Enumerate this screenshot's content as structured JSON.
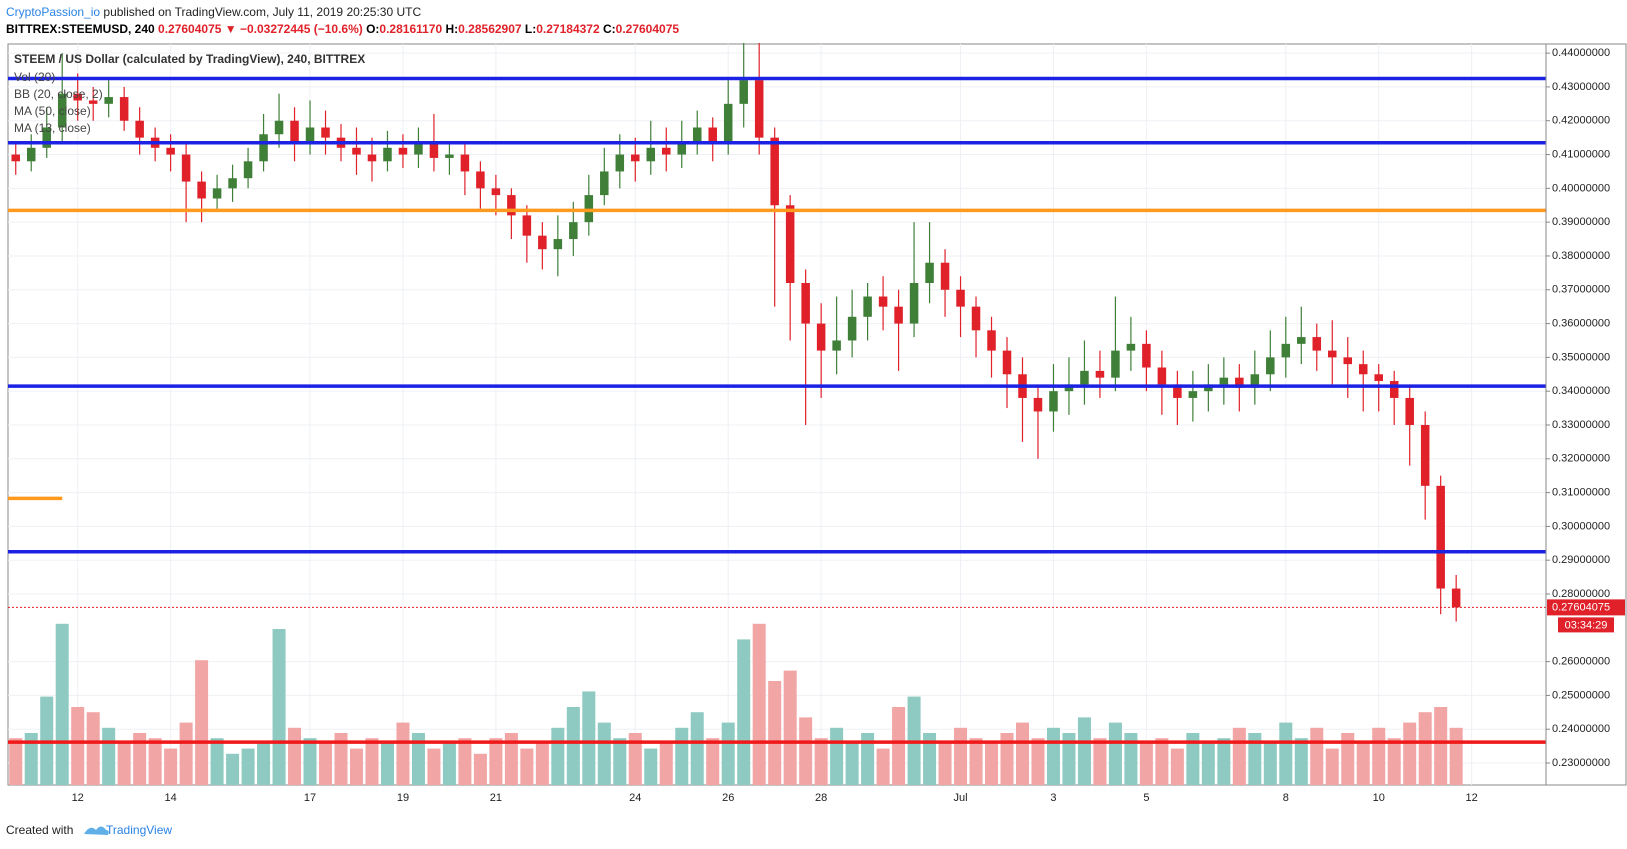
{
  "header": {
    "author": "CryptoPassion_io",
    "published": " published on TradingView.com, July 11, 2019 20:25:30 UTC",
    "quote": [
      {
        "text": "BITTREX:STEEMUSD, 240 ",
        "color": "#000000"
      },
      {
        "text": "0.27604075 ▼ −0.03272445 (−10.6%) ",
        "color": "#e0212a"
      },
      {
        "text": "O:",
        "color": "#000000"
      },
      {
        "text": "0.28161170 ",
        "color": "#e0212a"
      },
      {
        "text": "H:",
        "color": "#000000"
      },
      {
        "text": "0.28562907 ",
        "color": "#e0212a"
      },
      {
        "text": "L:",
        "color": "#000000"
      },
      {
        "text": "0.27184372 ",
        "color": "#e0212a"
      },
      {
        "text": "C:",
        "color": "#000000"
      },
      {
        "text": "0.27604075",
        "color": "#e0212a"
      }
    ]
  },
  "chart_data": {
    "type": "candlestick",
    "title": "STEEM / US Dollar (calculated by TradingView), 240, BITTREX",
    "indicators": [
      "Vol (20)",
      "BB (20, close, 2)",
      "MA (50, close)",
      "MA (13, close)"
    ],
    "categories": [
      null,
      null,
      null,
      null,
      "12",
      null,
      null,
      null,
      null,
      null,
      "14",
      null,
      null,
      null,
      null,
      null,
      null,
      null,
      null,
      "17",
      null,
      null,
      null,
      null,
      null,
      "19",
      null,
      null,
      null,
      null,
      null,
      "21",
      null,
      null,
      null,
      null,
      null,
      null,
      null,
      null,
      "24",
      null,
      null,
      null,
      null,
      null,
      "26",
      null,
      null,
      null,
      null,
      null,
      "28",
      null,
      null,
      null,
      null,
      null,
      null,
      null,
      null,
      "Jul",
      null,
      null,
      null,
      null,
      null,
      "3",
      null,
      null,
      null,
      null,
      null,
      "5",
      null,
      null,
      null,
      null,
      null,
      null,
      null,
      null,
      "8",
      null,
      null,
      null,
      null,
      null,
      "10",
      null,
      null,
      null,
      null,
      null,
      "12"
    ],
    "candles": {
      "open": [
        0.41,
        0.408,
        0.412,
        0.418,
        0.428,
        0.426,
        0.425,
        0.427,
        0.42,
        0.415,
        0.412,
        0.41,
        0.402,
        0.397,
        0.4,
        0.403,
        0.408,
        0.416,
        0.42,
        0.414,
        0.418,
        0.415,
        0.412,
        0.41,
        0.408,
        0.412,
        0.41,
        0.413,
        0.409,
        0.41,
        0.405,
        0.4,
        0.398,
        0.392,
        0.386,
        0.382,
        0.385,
        0.39,
        0.398,
        0.405,
        0.41,
        0.408,
        0.412,
        0.41,
        0.414,
        0.418,
        0.413,
        0.425,
        0.432,
        0.415,
        0.395,
        0.372,
        0.36,
        0.352,
        0.355,
        0.362,
        0.368,
        0.365,
        0.36,
        0.372,
        0.378,
        0.37,
        0.365,
        0.358,
        0.352,
        0.345,
        0.338,
        0.334,
        0.34,
        0.342,
        0.346,
        0.344,
        0.352,
        0.354,
        0.347,
        0.342,
        0.338,
        0.34,
        0.342,
        0.344,
        0.341,
        0.345,
        0.35,
        0.354,
        0.356,
        0.352,
        0.35,
        0.348,
        0.345,
        0.343,
        0.338,
        0.33,
        0.312,
        0.2816117,
        null
      ],
      "high": [
        0.414,
        0.416,
        0.424,
        0.44,
        0.434,
        0.43,
        0.432,
        0.43,
        0.424,
        0.418,
        0.416,
        0.413,
        0.405,
        0.404,
        0.407,
        0.412,
        0.422,
        0.428,
        0.424,
        0.426,
        0.423,
        0.419,
        0.418,
        0.415,
        0.417,
        0.416,
        0.418,
        0.422,
        0.414,
        0.413,
        0.408,
        0.404,
        0.4,
        0.395,
        0.39,
        0.392,
        0.396,
        0.404,
        0.412,
        0.416,
        0.415,
        0.42,
        0.418,
        0.42,
        0.423,
        0.421,
        0.432,
        0.443,
        0.443,
        0.418,
        0.398,
        0.376,
        0.366,
        0.368,
        0.37,
        0.372,
        0.374,
        0.37,
        0.39,
        0.39,
        0.382,
        0.374,
        0.368,
        0.362,
        0.356,
        0.35,
        0.342,
        0.348,
        0.35,
        0.355,
        0.352,
        0.368,
        0.362,
        0.358,
        0.352,
        0.346,
        0.346,
        0.348,
        0.35,
        0.348,
        0.352,
        0.358,
        0.362,
        0.365,
        0.36,
        0.361,
        0.356,
        0.352,
        0.348,
        0.346,
        0.342,
        0.334,
        0.315,
        0.28562907,
        null
      ],
      "low": [
        0.404,
        0.405,
        0.409,
        0.414,
        0.42,
        0.42,
        0.421,
        0.417,
        0.41,
        0.408,
        0.405,
        0.39,
        0.39,
        0.393,
        0.396,
        0.4,
        0.405,
        0.412,
        0.408,
        0.41,
        0.41,
        0.408,
        0.404,
        0.402,
        0.405,
        0.406,
        0.406,
        0.405,
        0.404,
        0.398,
        0.394,
        0.392,
        0.385,
        0.378,
        0.376,
        0.374,
        0.38,
        0.386,
        0.395,
        0.4,
        0.402,
        0.404,
        0.405,
        0.406,
        0.41,
        0.408,
        0.41,
        0.418,
        0.41,
        0.365,
        0.355,
        0.33,
        0.338,
        0.345,
        0.35,
        0.355,
        0.358,
        0.346,
        0.356,
        0.366,
        0.362,
        0.356,
        0.35,
        0.344,
        0.335,
        0.325,
        0.32,
        0.328,
        0.333,
        0.336,
        0.338,
        0.34,
        0.346,
        0.34,
        0.333,
        0.33,
        0.331,
        0.334,
        0.336,
        0.334,
        0.336,
        0.34,
        0.344,
        0.348,
        0.346,
        0.342,
        0.338,
        0.334,
        0.334,
        0.33,
        0.318,
        0.302,
        0.274,
        0.27184372,
        null
      ],
      "close": [
        0.408,
        0.412,
        0.418,
        0.428,
        0.426,
        0.425,
        0.427,
        0.42,
        0.415,
        0.412,
        0.41,
        0.402,
        0.397,
        0.4,
        0.403,
        0.408,
        0.416,
        0.42,
        0.414,
        0.418,
        0.415,
        0.412,
        0.41,
        0.408,
        0.412,
        0.41,
        0.413,
        0.409,
        0.41,
        0.405,
        0.4,
        0.398,
        0.392,
        0.386,
        0.382,
        0.385,
        0.39,
        0.398,
        0.405,
        0.41,
        0.408,
        0.412,
        0.41,
        0.414,
        0.418,
        0.413,
        0.425,
        0.432,
        0.415,
        0.395,
        0.372,
        0.36,
        0.352,
        0.355,
        0.362,
        0.368,
        0.365,
        0.36,
        0.372,
        0.378,
        0.37,
        0.365,
        0.358,
        0.352,
        0.345,
        0.338,
        0.334,
        0.34,
        0.342,
        0.346,
        0.344,
        0.352,
        0.354,
        0.347,
        0.342,
        0.338,
        0.34,
        0.342,
        0.344,
        0.341,
        0.345,
        0.35,
        0.354,
        0.356,
        0.352,
        0.35,
        0.348,
        0.345,
        0.343,
        0.338,
        0.33,
        0.312,
        0.2816117,
        0.27604075,
        null
      ],
      "volume": [
        18,
        20,
        34,
        62,
        30,
        28,
        22,
        16,
        20,
        18,
        14,
        24,
        48,
        18,
        12,
        14,
        16,
        60,
        22,
        18,
        16,
        20,
        14,
        18,
        16,
        24,
        20,
        14,
        16,
        18,
        12,
        18,
        20,
        14,
        16,
        22,
        30,
        36,
        24,
        18,
        20,
        14,
        16,
        22,
        28,
        18,
        24,
        56,
        62,
        40,
        44,
        26,
        18,
        22,
        16,
        20,
        14,
        30,
        34,
        20,
        16,
        22,
        18,
        16,
        20,
        24,
        18,
        22,
        20,
        26,
        18,
        24,
        20,
        16,
        18,
        14,
        20,
        16,
        18,
        22,
        20,
        16,
        24,
        18,
        22,
        14,
        20,
        16,
        22,
        18,
        24,
        28,
        30,
        22,
        null
      ]
    },
    "up_color": "#3f7f38",
    "down_color": "#e0212a",
    "up_volume_color": "#8ecac2",
    "down_volume_color": "#f2a5a5",
    "levels": [
      {
        "value": 0.4325,
        "color": "#1c22e4"
      },
      {
        "value": 0.4135,
        "color": "#1c22e4"
      },
      {
        "value": 0.3935,
        "color": "#ff9a1f"
      },
      {
        "value": 0.3415,
        "color": "#1c22e4"
      },
      {
        "value": 0.2925,
        "color": "#1c22e4"
      },
      {
        "value": 0.3083,
        "color": "#ff9a1f",
        "end": 3
      },
      {
        "value": 0.2362,
        "color": "#f01818"
      }
    ],
    "countdown": "03:34:29",
    "ylim": [
      0.2235,
      0.4427
    ],
    "yticks": [
      {
        "value": 0.23,
        "label": "0.23000000"
      },
      {
        "value": 0.24,
        "label": "0.24000000"
      },
      {
        "value": 0.25,
        "label": "0.25000000"
      },
      {
        "value": 0.26,
        "label": "0.26000000"
      },
      {
        "value": 0.28,
        "label": "0.28000000"
      },
      {
        "value": 0.29,
        "label": "0.29000000"
      },
      {
        "value": 0.3,
        "label": "0.30000000"
      },
      {
        "value": 0.31,
        "label": "0.31000000"
      },
      {
        "value": 0.32,
        "label": "0.32000000"
      },
      {
        "value": 0.33,
        "label": "0.33000000"
      },
      {
        "value": 0.34,
        "label": "0.34000000"
      },
      {
        "value": 0.35,
        "label": "0.35000000"
      },
      {
        "value": 0.36,
        "label": "0.36000000"
      },
      {
        "value": 0.37,
        "label": "0.37000000"
      },
      {
        "value": 0.38,
        "label": "0.38000000"
      },
      {
        "value": 0.39,
        "label": "0.39000000"
      },
      {
        "value": 0.4,
        "label": "0.40000000"
      },
      {
        "value": 0.41,
        "label": "0.41000000"
      },
      {
        "value": 0.42,
        "label": "0.42000000"
      },
      {
        "value": 0.43,
        "label": "0.43000000"
      },
      {
        "value": 0.44,
        "label": "0.44000000"
      }
    ],
    "grid": true
  },
  "footer": {
    "created": "Created with",
    "brand": "TradingView"
  }
}
